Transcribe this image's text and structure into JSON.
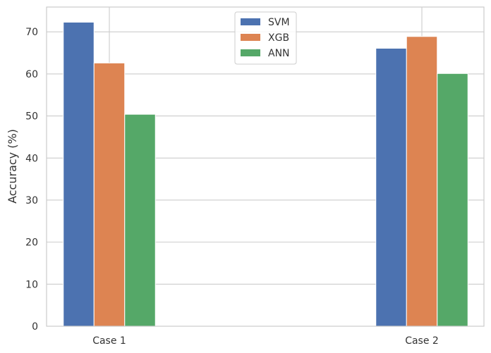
{
  "chart_data": {
    "type": "bar",
    "categories": [
      "Case 1",
      "Case 2"
    ],
    "series": [
      {
        "name": "SVM",
        "values": [
          72.3,
          66.1
        ],
        "color": "#4c72b0"
      },
      {
        "name": "XGB",
        "values": [
          62.6,
          68.9
        ],
        "color": "#dd8452"
      },
      {
        "name": "ANN",
        "values": [
          50.4,
          60.1
        ],
        "color": "#55a868"
      }
    ],
    "xlabel": "",
    "ylabel": "Accuracy (%)",
    "ylim": [
      0,
      75.9
    ],
    "yticks": [
      0,
      10,
      20,
      30,
      40,
      50,
      60,
      70
    ],
    "grid": true,
    "legend_position": "top-center"
  }
}
